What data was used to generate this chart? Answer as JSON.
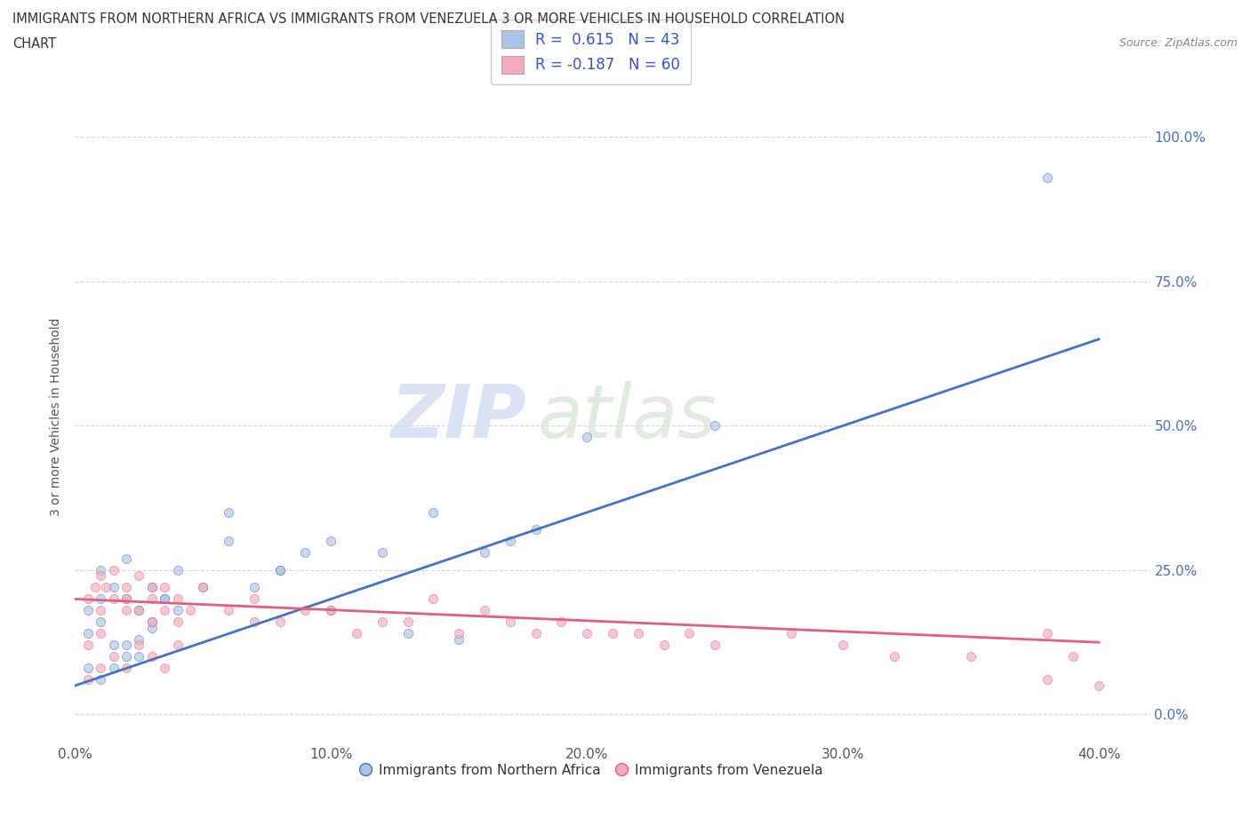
{
  "title_line1": "IMMIGRANTS FROM NORTHERN AFRICA VS IMMIGRANTS FROM VENEZUELA 3 OR MORE VEHICLES IN HOUSEHOLD CORRELATION",
  "title_line2": "CHART",
  "source_text": "Source: ZipAtlas.com",
  "ylabel": "3 or more Vehicles in Household",
  "xlim": [
    0.0,
    0.42
  ],
  "ylim": [
    -0.05,
    1.08
  ],
  "ytick_vals": [
    0.0,
    0.25,
    0.5,
    0.75,
    1.0
  ],
  "xtick_vals": [
    0.0,
    0.1,
    0.2,
    0.3,
    0.4
  ],
  "color_blue": "#aac4e8",
  "color_pink": "#f4aabe",
  "line_blue": "#4472c4",
  "line_pink": "#e06080",
  "blue_scatter_x": [
    0.005,
    0.01,
    0.01,
    0.015,
    0.02,
    0.02,
    0.025,
    0.03,
    0.03,
    0.035,
    0.005,
    0.01,
    0.015,
    0.02,
    0.025,
    0.03,
    0.035,
    0.04,
    0.04,
    0.005,
    0.01,
    0.015,
    0.02,
    0.025,
    0.05,
    0.06,
    0.07,
    0.08,
    0.09,
    0.1,
    0.06,
    0.08,
    0.1,
    0.12,
    0.13,
    0.14,
    0.15,
    0.16,
    0.17,
    0.18,
    0.2,
    0.25,
    0.38
  ],
  "blue_scatter_y": [
    0.18,
    0.2,
    0.25,
    0.22,
    0.2,
    0.27,
    0.18,
    0.22,
    0.15,
    0.2,
    0.14,
    0.16,
    0.12,
    0.1,
    0.13,
    0.16,
    0.2,
    0.18,
    0.25,
    0.08,
    0.06,
    0.08,
    0.12,
    0.1,
    0.22,
    0.35,
    0.22,
    0.25,
    0.28,
    0.18,
    0.3,
    0.25,
    0.3,
    0.28,
    0.14,
    0.35,
    0.13,
    0.28,
    0.3,
    0.32,
    0.48,
    0.5,
    0.93
  ],
  "pink_scatter_x": [
    0.005,
    0.008,
    0.01,
    0.01,
    0.012,
    0.015,
    0.015,
    0.02,
    0.02,
    0.02,
    0.025,
    0.025,
    0.03,
    0.03,
    0.03,
    0.035,
    0.035,
    0.04,
    0.04,
    0.045,
    0.005,
    0.01,
    0.015,
    0.02,
    0.025,
    0.03,
    0.035,
    0.04,
    0.005,
    0.01,
    0.05,
    0.06,
    0.07,
    0.07,
    0.08,
    0.09,
    0.1,
    0.11,
    0.12,
    0.13,
    0.14,
    0.15,
    0.16,
    0.17,
    0.18,
    0.19,
    0.2,
    0.21,
    0.22,
    0.23,
    0.24,
    0.25,
    0.28,
    0.3,
    0.32,
    0.35,
    0.38,
    0.38,
    0.39,
    0.4
  ],
  "pink_scatter_y": [
    0.2,
    0.22,
    0.24,
    0.18,
    0.22,
    0.25,
    0.2,
    0.22,
    0.18,
    0.2,
    0.24,
    0.18,
    0.2,
    0.22,
    0.16,
    0.18,
    0.22,
    0.2,
    0.16,
    0.18,
    0.12,
    0.14,
    0.1,
    0.08,
    0.12,
    0.1,
    0.08,
    0.12,
    0.06,
    0.08,
    0.22,
    0.18,
    0.2,
    0.16,
    0.16,
    0.18,
    0.18,
    0.14,
    0.16,
    0.16,
    0.2,
    0.14,
    0.18,
    0.16,
    0.14,
    0.16,
    0.14,
    0.14,
    0.14,
    0.12,
    0.14,
    0.12,
    0.14,
    0.12,
    0.1,
    0.1,
    0.14,
    0.06,
    0.1,
    0.05
  ],
  "blue_line_x": [
    0.0,
    0.4
  ],
  "blue_line_y": [
    0.05,
    0.65
  ],
  "pink_line_x": [
    0.0,
    0.4
  ],
  "pink_line_y": [
    0.2,
    0.125
  ],
  "grid_color": "#cccccc",
  "background_color": "#ffffff",
  "scatter_size": 55,
  "scatter_alpha": 0.65
}
